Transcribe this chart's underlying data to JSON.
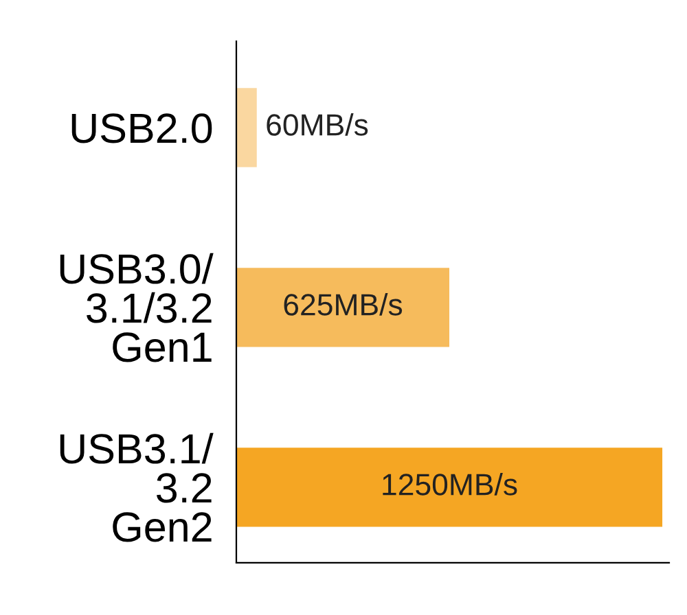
{
  "chart_data": {
    "type": "bar",
    "orientation": "horizontal",
    "categories": [
      "USB2.0",
      "USB3.0/\n3.1/3.2\nGen1",
      "USB3.1/\n3.2\nGen2"
    ],
    "values": [
      60,
      625,
      1250
    ],
    "colors": [
      "#fad7a0",
      "#f6bb5c",
      "#f5a623"
    ],
    "value_labels": [
      "60MB/s",
      "625MB/s",
      "1250MB/s"
    ],
    "xlim": [
      0,
      1270
    ],
    "tick_labels": "y",
    "grid": false,
    "legend": false
  }
}
